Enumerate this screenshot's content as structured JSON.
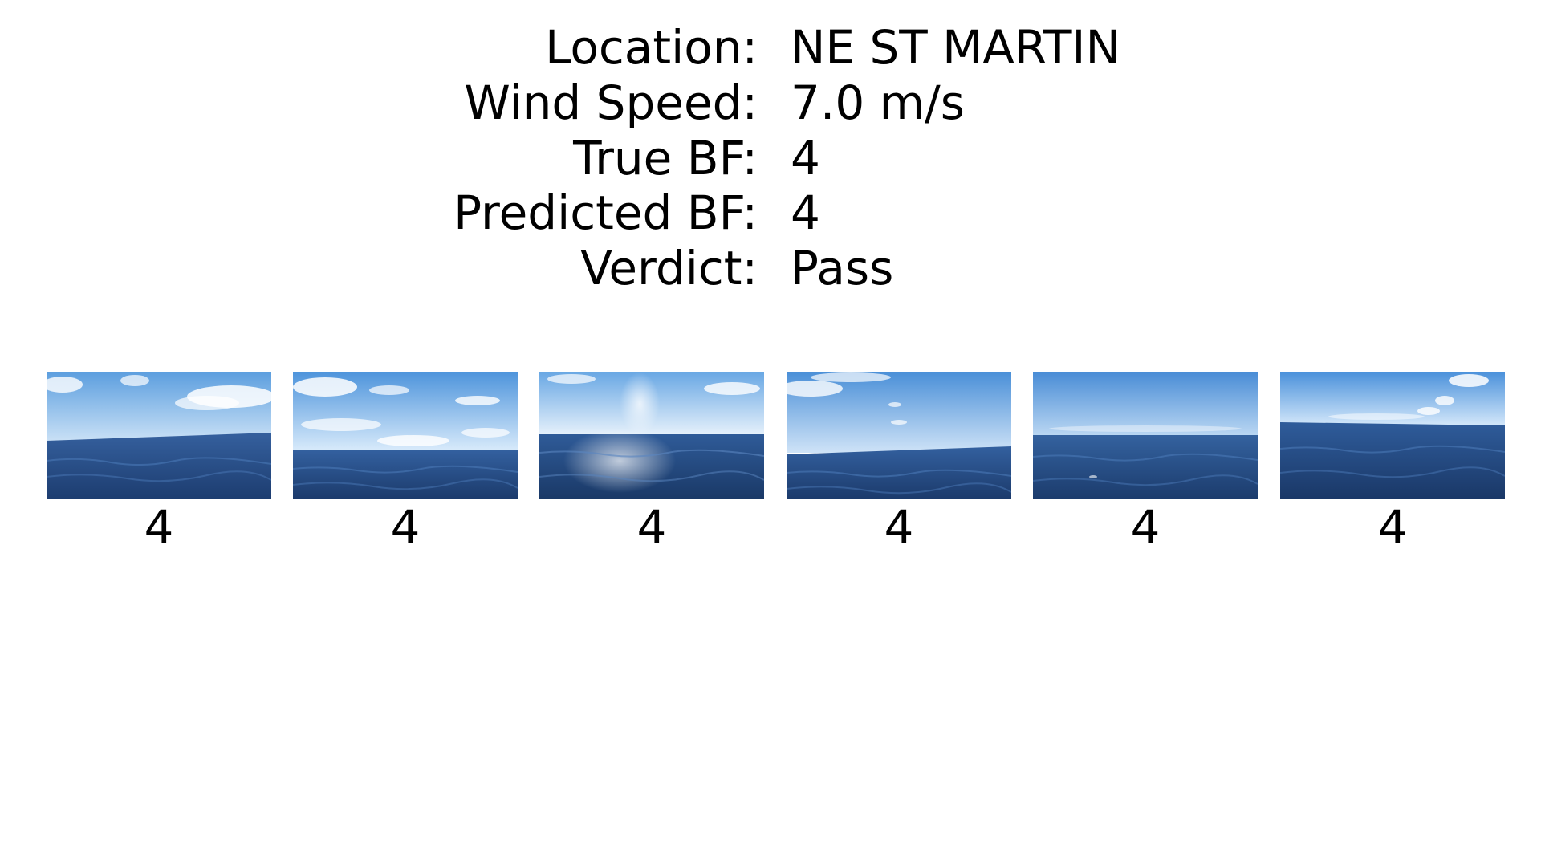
{
  "info": {
    "location_label": "Location:",
    "location_value": "NE ST MARTIN",
    "wind_speed_label": "Wind Speed:",
    "wind_speed_value": "7.0 m/s",
    "true_bf_label": "True BF:",
    "true_bf_value": "4",
    "predicted_bf_label": "Predicted BF:",
    "predicted_bf_value": "4",
    "verdict_label": "Verdict:",
    "verdict_value": "Pass"
  },
  "images": [
    {
      "label": "4"
    },
    {
      "label": "4"
    },
    {
      "label": "4"
    },
    {
      "label": "4"
    },
    {
      "label": "4"
    },
    {
      "label": "4"
    }
  ],
  "colors": {
    "sky_top": "#5b9fe0",
    "sky_bottom": "#d6e9fb",
    "sea_top": "#2f5a99",
    "sea_bottom": "#1b3a6b"
  }
}
